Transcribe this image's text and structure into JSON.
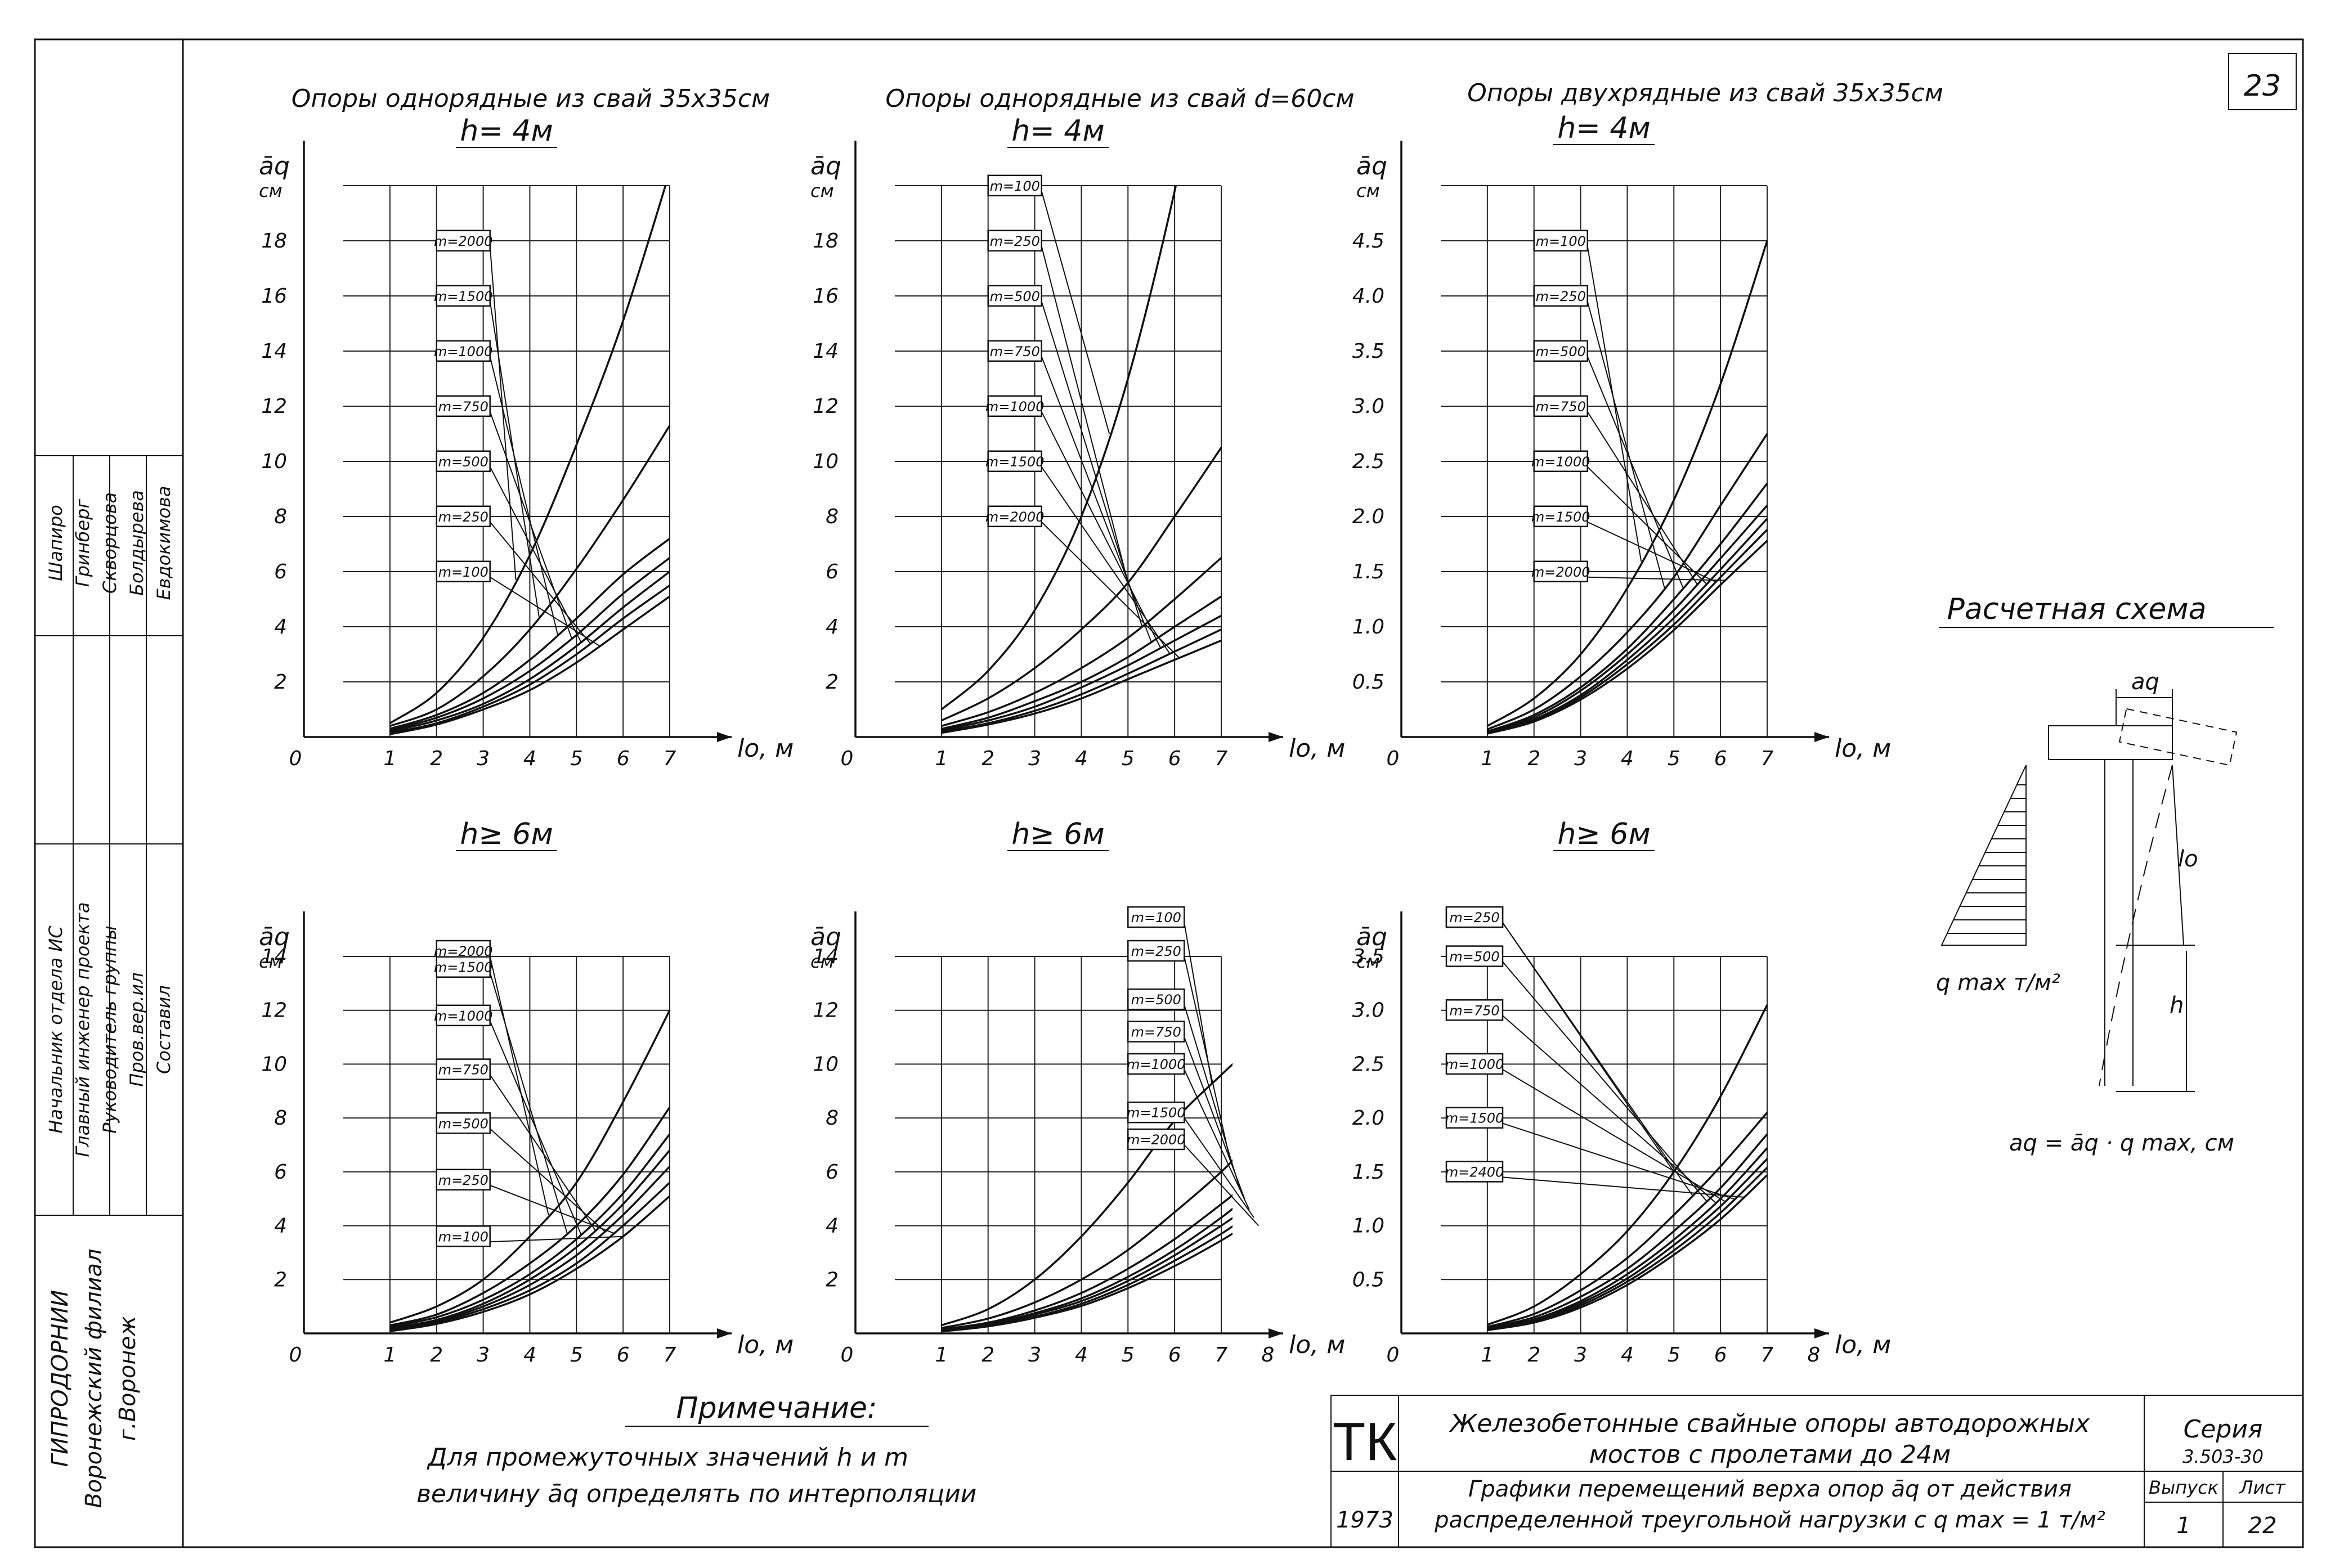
{
  "sheet_number": "23",
  "group_titles": [
    {
      "text": "Опоры однорядные из свай 35х35см"
    },
    {
      "text": "Опоры однорядные из свай d=60см"
    },
    {
      "text": "Опоры двухрядные из свай 35х35см"
    }
  ],
  "side_stamp": {
    "roles": [
      "Начальник отдела ИС",
      "Главный инженер проекта",
      "Руководитель группы",
      "Пров.вер.ил",
      "Составил"
    ],
    "names": [
      "Шапиро",
      "Гринберг",
      "Скворцова",
      "Болдырева",
      "Евдокимова"
    ],
    "org_lines": [
      "ГИПРОДОРНИИ",
      "Воронежский филиал",
      "г.Воронеж"
    ]
  },
  "scheme": {
    "title": "Расчетная схема",
    "top_label": "aq",
    "side_label": "lo",
    "h_label": "h",
    "load_label": "q max т/м²",
    "formula": "aq = āq · q max, см"
  },
  "note": {
    "title": "Примечание:",
    "lines": [
      "Для промежуточных значений h и m",
      "величину āq определять по интерполяции"
    ]
  },
  "title_block": {
    "tk": "ТК",
    "year": "1973",
    "title_line1": "Железобетонные свайные опоры автодорожных",
    "title_line2": "мостов с пролетами до 24м",
    "sub_line1": "Графики перемещений верха опор āq от действия",
    "sub_line2": "распределенной треугольной нагрузки с q max = 1 т/м²",
    "series_label": "Серия",
    "series_value": "3.503-30",
    "issue_label": "Выпуск",
    "issue_value": "1",
    "sheet_label": "Лист",
    "sheet_value": "22"
  },
  "chart_data": [
    {
      "type": "line",
      "title": "h= 4м",
      "ylabel": "āq",
      "yunit": "см",
      "xlabel": "lo, м",
      "xlim": [
        0,
        7
      ],
      "ylim": [
        0,
        20
      ],
      "x_ticks": [
        "0",
        "1",
        "2",
        "3",
        "4",
        "5",
        "6",
        "7"
      ],
      "y_ticks": [
        "2",
        "4",
        "6",
        "8",
        "10",
        "12",
        "14",
        "16",
        "18"
      ],
      "y_tick_values": [
        2,
        4,
        6,
        8,
        10,
        12,
        14,
        16,
        18
      ],
      "grid": true,
      "x": [
        1,
        2,
        3,
        4,
        5,
        6,
        7
      ],
      "series": [
        {
          "name": "m=2000",
          "values": [
            0.5,
            1.6,
            3.6,
            6.6,
            10.6,
            15.1,
            20.5
          ],
          "label_y": 17.8,
          "x_end": 3.7
        },
        {
          "name": "m=1500",
          "values": [
            0.4,
            1.0,
            2.2,
            3.9,
            6.1,
            8.6,
            11.3
          ],
          "label_y": 15.8,
          "x_end": 4.2
        },
        {
          "name": "m=1000",
          "values": [
            0.3,
            0.8,
            1.6,
            2.8,
            4.3,
            5.9,
            7.2
          ],
          "label_y": 13.8,
          "x_end": 4.6
        },
        {
          "name": "m=750",
          "values": [
            0.25,
            0.7,
            1.4,
            2.4,
            3.7,
            5.2,
            6.5
          ],
          "label_y": 11.8,
          "x_end": 4.9
        },
        {
          "name": "m=500",
          "values": [
            0.2,
            0.6,
            1.2,
            2.1,
            3.3,
            4.7,
            6.0
          ],
          "label_y": 9.8,
          "x_end": 5.1
        },
        {
          "name": "m=250",
          "values": [
            0.15,
            0.5,
            1.1,
            1.9,
            3.0,
            4.3,
            5.5
          ],
          "label_y": 7.8,
          "x_end": 5.3
        },
        {
          "name": "m=100",
          "values": [
            0.1,
            0.45,
            1.0,
            1.7,
            2.7,
            3.9,
            5.1
          ],
          "label_y": 5.8,
          "x_end": 5.5
        }
      ]
    },
    {
      "type": "line",
      "title": "h= 4м",
      "ylabel": "āq",
      "yunit": "см",
      "xlabel": "lo, м",
      "xlim": [
        0,
        7
      ],
      "ylim": [
        0,
        20
      ],
      "x_ticks": [
        "0",
        "1",
        "2",
        "3",
        "4",
        "5",
        "6",
        "7"
      ],
      "y_ticks": [
        "2",
        "4",
        "6",
        "8",
        "10",
        "12",
        "14",
        "16",
        "18"
      ],
      "y_tick_values": [
        2,
        4,
        6,
        8,
        10,
        12,
        14,
        16,
        18
      ],
      "grid": true,
      "x": [
        1,
        2,
        3,
        4,
        5,
        6,
        7
      ],
      "series": [
        {
          "name": "m=100",
          "values": [
            1.0,
            2.4,
            4.6,
            8.0,
            13.0,
            19.8,
            28.0
          ],
          "label_y": 19.8,
          "x_end": 4.6
        },
        {
          "name": "m=250",
          "values": [
            0.6,
            1.4,
            2.5,
            3.9,
            5.6,
            8.0,
            10.5
          ],
          "label_y": 17.8,
          "x_end": 5.0
        },
        {
          "name": "m=500",
          "values": [
            0.4,
            0.9,
            1.6,
            2.5,
            3.6,
            5.0,
            6.5
          ],
          "label_y": 15.8,
          "x_end": 5.3
        },
        {
          "name": "m=750",
          "values": [
            0.3,
            0.7,
            1.3,
            2.0,
            2.9,
            4.0,
            5.1
          ],
          "label_y": 13.8,
          "x_end": 5.5
        },
        {
          "name": "m=1000",
          "values": [
            0.25,
            0.6,
            1.1,
            1.8,
            2.6,
            3.5,
            4.4
          ],
          "label_y": 11.8,
          "x_end": 5.7
        },
        {
          "name": "m=1500",
          "values": [
            0.2,
            0.5,
            0.95,
            1.55,
            2.3,
            3.1,
            3.9
          ],
          "label_y": 9.8,
          "x_end": 5.9
        },
        {
          "name": "m=2000",
          "values": [
            0.15,
            0.45,
            0.85,
            1.4,
            2.1,
            2.8,
            3.5
          ],
          "label_y": 7.8,
          "x_end": 6.1
        }
      ]
    },
    {
      "type": "line",
      "title": "h= 4м",
      "ylabel": "āq",
      "yunit": "см",
      "xlabel": "lo, м",
      "xlim": [
        0,
        7
      ],
      "ylim": [
        0,
        5
      ],
      "x_ticks": [
        "0",
        "1",
        "2",
        "3",
        "4",
        "5",
        "6",
        "7"
      ],
      "y_ticks": [
        "0.5",
        "1.0",
        "1.5",
        "2.0",
        "2.5",
        "3.0",
        "3.5",
        "4.0",
        "4.5"
      ],
      "y_tick_values": [
        0.5,
        1.0,
        1.5,
        2.0,
        2.5,
        3.0,
        3.5,
        4.0,
        4.5
      ],
      "grid": true,
      "x": [
        1,
        2,
        3,
        4,
        5,
        6,
        7
      ],
      "series": [
        {
          "name": "m=100",
          "values": [
            0.1,
            0.35,
            0.75,
            1.35,
            2.15,
            3.2,
            4.5
          ],
          "label_y": 4.45,
          "x_end": 4.3
        },
        {
          "name": "m=250",
          "values": [
            0.07,
            0.25,
            0.55,
            0.95,
            1.45,
            2.1,
            2.75
          ],
          "label_y": 3.95,
          "x_end": 4.8
        },
        {
          "name": "m=500",
          "values": [
            0.05,
            0.2,
            0.45,
            0.8,
            1.25,
            1.75,
            2.3
          ],
          "label_y": 3.45,
          "x_end": 5.2
        },
        {
          "name": "m=750",
          "values": [
            0.05,
            0.18,
            0.42,
            0.75,
            1.15,
            1.62,
            2.1
          ],
          "label_y": 2.95,
          "x_end": 5.5
        },
        {
          "name": "m=1000",
          "values": [
            0.04,
            0.16,
            0.38,
            0.7,
            1.08,
            1.52,
            1.98
          ],
          "label_y": 2.45,
          "x_end": 5.7
        },
        {
          "name": "m=1500",
          "values": [
            0.04,
            0.15,
            0.36,
            0.66,
            1.02,
            1.45,
            1.88
          ],
          "label_y": 1.95,
          "x_end": 5.9
        },
        {
          "name": "m=2000",
          "values": [
            0.03,
            0.14,
            0.34,
            0.62,
            0.97,
            1.38,
            1.78
          ],
          "label_y": 1.45,
          "x_end": 6.1
        }
      ]
    },
    {
      "type": "line",
      "title": "h≥ 6м",
      "ylabel": "āq",
      "yunit": "см",
      "xlabel": "lo, м",
      "xlim": [
        0,
        7
      ],
      "ylim": [
        0,
        14
      ],
      "x_ticks": [
        "0",
        "1",
        "2",
        "3",
        "4",
        "5",
        "6",
        "7"
      ],
      "y_ticks": [
        "2",
        "4",
        "6",
        "8",
        "10",
        "12",
        "14"
      ],
      "y_tick_values": [
        2,
        4,
        6,
        8,
        10,
        12,
        14
      ],
      "grid": true,
      "x": [
        1,
        2,
        3,
        4,
        5,
        6,
        7
      ],
      "series": [
        {
          "name": "m=2000",
          "values": [
            0.4,
            1.0,
            2.0,
            3.6,
            5.6,
            8.6,
            12.0
          ],
          "label_y": 14.0,
          "x_end": 4.4
        },
        {
          "name": "m=1500",
          "values": [
            0.3,
            0.7,
            1.5,
            2.6,
            4.0,
            5.9,
            8.4
          ],
          "label_y": 13.4,
          "x_end": 4.8
        },
        {
          "name": "m=1000",
          "values": [
            0.25,
            0.6,
            1.25,
            2.2,
            3.5,
            5.2,
            7.4
          ],
          "label_y": 11.6,
          "x_end": 5.1
        },
        {
          "name": "m=750",
          "values": [
            0.2,
            0.5,
            1.1,
            2.0,
            3.2,
            4.8,
            6.8
          ],
          "label_y": 9.6,
          "x_end": 5.4
        },
        {
          "name": "m=500",
          "values": [
            0.15,
            0.45,
            1.0,
            1.8,
            2.9,
            4.4,
            6.2
          ],
          "label_y": 7.6,
          "x_end": 5.6
        },
        {
          "name": "m=250",
          "values": [
            0.1,
            0.4,
            0.9,
            1.6,
            2.6,
            4.0,
            5.6
          ],
          "label_y": 5.5,
          "x_end": 5.8
        },
        {
          "name": "m=100",
          "values": [
            0.08,
            0.35,
            0.8,
            1.45,
            2.4,
            3.6,
            5.1
          ],
          "label_y": 3.4,
          "x_end": 6.0
        }
      ]
    },
    {
      "type": "line",
      "title": "h≥ 6м",
      "ylabel": "āq",
      "yunit": "см",
      "xlabel": "lo, м",
      "xlim": [
        0,
        8
      ],
      "ylim": [
        0,
        14
      ],
      "x_ticks": [
        "0",
        "1",
        "2",
        "3",
        "4",
        "5",
        "6",
        "7",
        "8"
      ],
      "y_ticks": [
        "2",
        "4",
        "6",
        "8",
        "10",
        "12",
        "14"
      ],
      "y_tick_values": [
        2,
        4,
        6,
        8,
        10,
        12,
        14
      ],
      "grid": true,
      "x": [
        1,
        2,
        3,
        4,
        5,
        6,
        7,
        7.5
      ],
      "series": [
        {
          "name": "m=100",
          "values": [
            0.3,
            0.9,
            2.0,
            3.6,
            5.6,
            7.9,
            9.6,
            10.4
          ],
          "label_y": 15.4,
          "x_end": 6.8
        },
        {
          "name": "m=250",
          "values": [
            0.2,
            0.55,
            1.15,
            2.0,
            3.1,
            4.5,
            6.0,
            6.9
          ],
          "label_y": 14.0,
          "x_end": 7.2
        },
        {
          "name": "m=500",
          "values": [
            0.15,
            0.4,
            0.85,
            1.5,
            2.4,
            3.5,
            4.8,
            5.5
          ],
          "label_y": 12.2,
          "x_end": 7.4
        },
        {
          "name": "m=750",
          "values": [
            0.12,
            0.35,
            0.75,
            1.3,
            2.1,
            3.1,
            4.3,
            5.0
          ],
          "label_y": 11.0,
          "x_end": 7.5
        },
        {
          "name": "m=1000",
          "values": [
            0.1,
            0.32,
            0.7,
            1.2,
            1.95,
            2.9,
            4.0,
            4.6
          ],
          "label_y": 9.8,
          "x_end": 7.6
        },
        {
          "name": "m=1500",
          "values": [
            0.08,
            0.28,
            0.62,
            1.1,
            1.8,
            2.7,
            3.7,
            4.3
          ],
          "label_y": 8.0,
          "x_end": 7.7
        },
        {
          "name": "m=2000",
          "values": [
            0.07,
            0.26,
            0.58,
            1.02,
            1.68,
            2.5,
            3.45,
            4.0
          ],
          "label_y": 7.0,
          "x_end": 7.8
        }
      ]
    },
    {
      "type": "line",
      "title": "h≥ 6м",
      "ylabel": "āq",
      "yunit": "см",
      "xlabel": "lo, м",
      "xlim": [
        0,
        8
      ],
      "ylim": [
        0,
        3.5
      ],
      "x_ticks": [
        "0",
        "1",
        "2",
        "3",
        "4",
        "5",
        "6",
        "7",
        "8"
      ],
      "y_ticks": [
        "0.5",
        "1.0",
        "1.5",
        "2.0",
        "2.5",
        "3.0",
        "3.5"
      ],
      "y_tick_values": [
        0.5,
        1.0,
        1.5,
        2.0,
        2.5,
        3.0,
        3.5
      ],
      "grid": true,
      "x": [
        1,
        2,
        3,
        4,
        5,
        6,
        7
      ],
      "series": [
        {
          "name": "m=1000",
          "values": [
            0.08,
            0.25,
            0.55,
            0.95,
            1.5,
            2.2,
            3.05
          ],
          "label_y": 4.3,
          "x_end": 5.0
        },
        {
          "name": "m=250",
          "values": [
            0.06,
            0.18,
            0.4,
            0.7,
            1.1,
            1.55,
            2.05
          ],
          "label_y": 3.95,
          "x_end": 5.4
        },
        {
          "name": "m=500",
          "values": [
            0.05,
            0.15,
            0.34,
            0.6,
            0.95,
            1.35,
            1.85
          ],
          "label_y": 3.45,
          "x_end": 5.7
        },
        {
          "name": "m=750",
          "values": [
            0.04,
            0.13,
            0.3,
            0.55,
            0.87,
            1.25,
            1.72
          ],
          "label_y": 2.95,
          "x_end": 5.9
        },
        {
          "name": "m=1000",
          "values": [
            0.04,
            0.12,
            0.28,
            0.51,
            0.82,
            1.18,
            1.62
          ],
          "label_y": 2.45,
          "x_end": 6.1
        },
        {
          "name": "m=1500",
          "values": [
            0.03,
            0.11,
            0.26,
            0.48,
            0.77,
            1.12,
            1.54
          ],
          "label_y": 1.95,
          "x_end": 6.3
        },
        {
          "name": "m=2400",
          "values": [
            0.03,
            0.1,
            0.24,
            0.45,
            0.73,
            1.06,
            1.47
          ],
          "label_y": 1.45,
          "x_end": 6.5
        }
      ]
    }
  ]
}
